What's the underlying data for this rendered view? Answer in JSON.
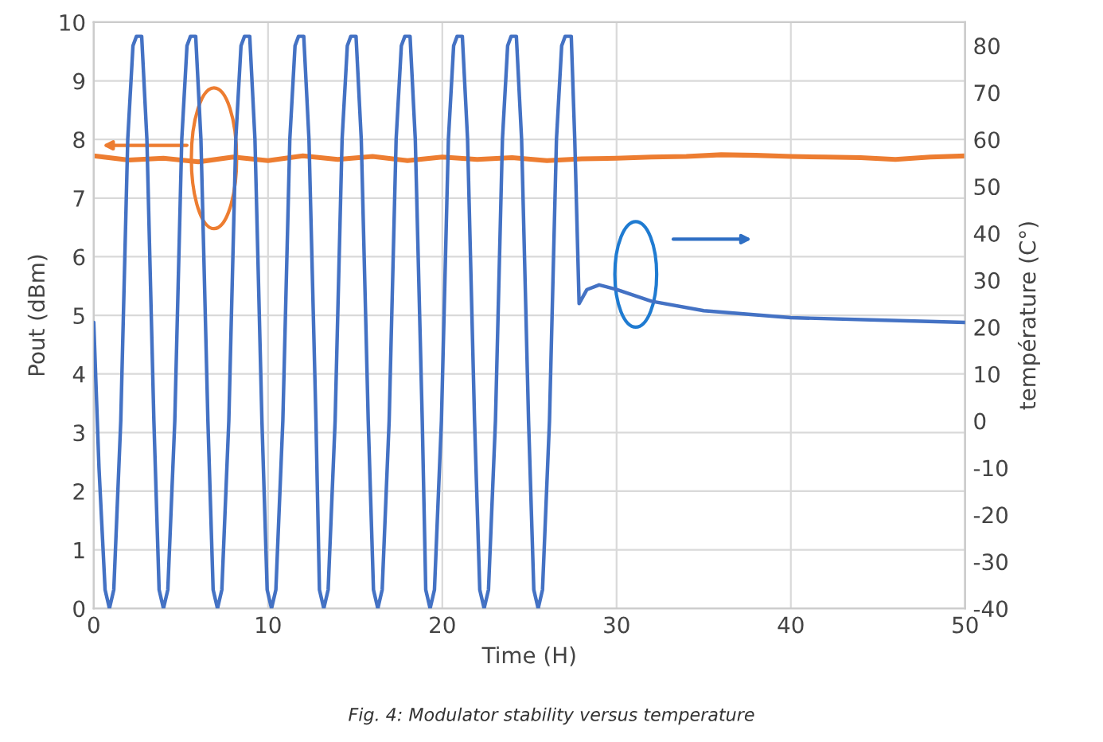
{
  "chart_data": {
    "type": "line",
    "xlabel": "Time (H)",
    "ylabel": "Pout (dBm)",
    "y2label": "température (C°)",
    "xlim": [
      0,
      50
    ],
    "xticks": [
      0,
      10,
      20,
      30,
      40,
      50
    ],
    "ylim": [
      0,
      10
    ],
    "yticks": [
      0,
      1,
      2,
      3,
      4,
      5,
      6,
      7,
      8,
      9,
      10
    ],
    "y2lim": [
      -40,
      85
    ],
    "y2ticks": [
      -40,
      -30,
      -20,
      -10,
      0,
      10,
      20,
      30,
      40,
      50,
      60,
      70,
      80
    ],
    "grid": true,
    "line_style": "solid",
    "marker": "none",
    "annotations": [
      "Fig. 4: Modulator stability versus temperature"
    ],
    "series": [
      {
        "color": "#ed7d31",
        "axis": "y",
        "x": [
          0,
          2,
          4,
          6,
          8,
          10,
          12,
          14,
          16,
          18,
          20,
          22,
          24,
          26,
          28,
          30,
          32,
          34,
          36,
          38,
          40,
          42,
          44,
          46,
          48,
          50
        ],
        "values": [
          7.72,
          7.65,
          7.68,
          7.62,
          7.7,
          7.64,
          7.72,
          7.66,
          7.71,
          7.64,
          7.7,
          7.66,
          7.69,
          7.64,
          7.67,
          7.68,
          7.7,
          7.71,
          7.74,
          7.73,
          7.71,
          7.7,
          7.69,
          7.66,
          7.7,
          7.72
        ]
      },
      {
        "color": "#4472c4",
        "axis": "y2",
        "x": [
          0,
          0.3,
          0.65,
          0.9,
          1.15,
          1.55,
          1.95,
          2.25,
          2.45,
          2.75,
          3.05,
          3.45,
          3.75,
          4.0,
          4.25,
          4.65,
          5.05,
          5.35,
          5.55,
          5.85,
          6.15,
          6.55,
          6.85,
          7.1,
          7.35,
          7.75,
          8.15,
          8.45,
          8.65,
          8.95,
          9.25,
          9.65,
          9.95,
          10.2,
          10.45,
          10.85,
          11.25,
          11.55,
          11.75,
          12.05,
          12.35,
          12.75,
          12.95,
          13.2,
          13.45,
          13.85,
          14.25,
          14.55,
          14.75,
          15.05,
          15.35,
          15.75,
          16.05,
          16.3,
          16.55,
          16.95,
          17.35,
          17.65,
          17.85,
          18.15,
          18.45,
          18.85,
          19.05,
          19.3,
          19.55,
          19.95,
          20.35,
          20.65,
          20.85,
          21.15,
          21.45,
          21.85,
          22.15,
          22.4,
          22.65,
          23.05,
          23.45,
          23.75,
          23.95,
          24.25,
          24.55,
          24.95,
          25.25,
          25.5,
          25.75,
          26.15,
          26.55,
          26.85,
          27.05,
          27.4,
          27.6,
          27.85,
          28.3,
          29,
          30,
          32,
          35,
          40,
          45,
          50
        ],
        "values": [
          21,
          -10,
          -36,
          -40,
          -36,
          0,
          60,
          80,
          82,
          82,
          60,
          0,
          -36,
          -40,
          -36,
          0,
          60,
          80,
          82,
          82,
          60,
          0,
          -36,
          -40,
          -36,
          0,
          60,
          80,
          82,
          82,
          60,
          0,
          -36,
          -40,
          -36,
          0,
          60,
          80,
          82,
          82,
          60,
          0,
          -36,
          -40,
          -36,
          0,
          60,
          80,
          82,
          82,
          60,
          0,
          -36,
          -40,
          -36,
          0,
          60,
          80,
          82,
          82,
          60,
          0,
          -36,
          -40,
          -36,
          0,
          60,
          80,
          82,
          82,
          60,
          0,
          -36,
          -40,
          -36,
          0,
          60,
          80,
          82,
          82,
          60,
          0,
          -36,
          -40,
          -36,
          0,
          60,
          80,
          82,
          82,
          60,
          25,
          28,
          29,
          28,
          25.5,
          23.5,
          22,
          21.5,
          21
        ]
      }
    ]
  }
}
